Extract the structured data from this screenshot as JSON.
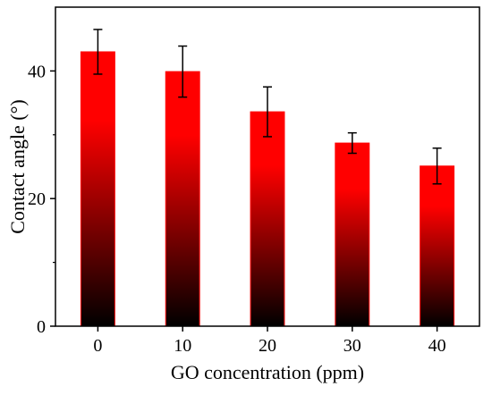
{
  "chart_data": {
    "type": "bar",
    "xlabel": "GO concentration (ppm)",
    "ylabel": "Contact angle (°)",
    "categories": [
      "0",
      "10",
      "20",
      "30",
      "40"
    ],
    "values": [
      43.0,
      39.9,
      33.6,
      28.7,
      25.1
    ],
    "error_bars": [
      3.5,
      4.0,
      3.9,
      1.6,
      2.8
    ],
    "ylim": [
      0,
      50
    ],
    "y_ticks": [
      0,
      20,
      40
    ],
    "y_tick_labels": [
      "0",
      "20",
      "40"
    ],
    "y_minor_ticks": [
      10,
      30
    ],
    "grid": false,
    "legend": "none",
    "bar_fill": "vertical gradient, red top to black bottom",
    "colors": {
      "bar_top": "#ff0000",
      "bar_bottom": "#000000",
      "bar_edge": "#ff0000",
      "axis": "#000000",
      "error_bar": "#000000"
    }
  }
}
